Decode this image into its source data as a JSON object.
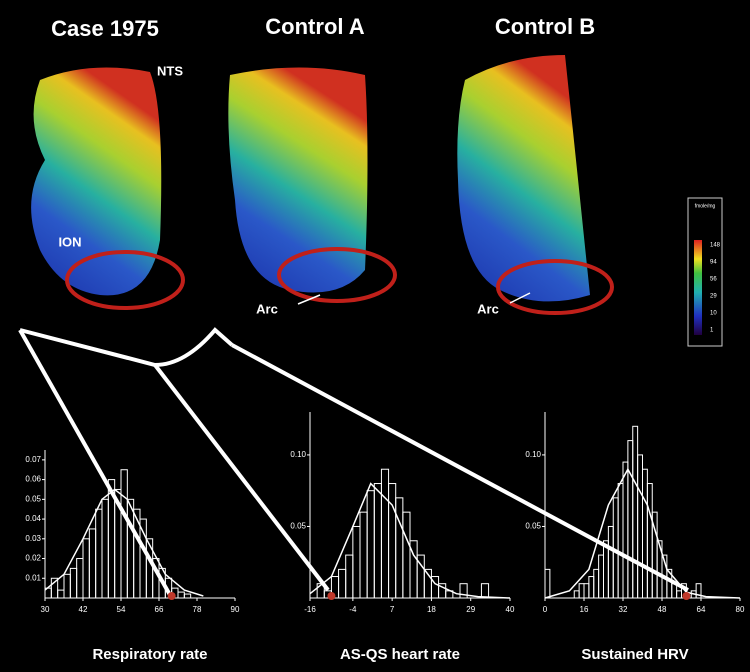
{
  "images": [
    {
      "title": "Case 1975",
      "labels": [
        "NTS",
        "ION"
      ]
    },
    {
      "title": "Control A",
      "labels": [
        "Arc"
      ]
    },
    {
      "title": "Control B",
      "labels": [
        "Arc"
      ]
    }
  ],
  "colorbar": {
    "title": "fmole/mg",
    "labels": [
      "148",
      "94",
      "56",
      "29",
      "10",
      "1"
    ]
  },
  "chart_data": [
    {
      "type": "histogram",
      "xlabel": "Respiratory rate",
      "bins": [
        30,
        32,
        34,
        36,
        38,
        40,
        42,
        44,
        46,
        48,
        50,
        52,
        54,
        56,
        58,
        60,
        62,
        64,
        66,
        68,
        70,
        72,
        74,
        76
      ],
      "values": [
        0.005,
        0.01,
        0.004,
        0.012,
        0.015,
        0.02,
        0.03,
        0.035,
        0.045,
        0.05,
        0.06,
        0.055,
        0.065,
        0.05,
        0.045,
        0.04,
        0.03,
        0.02,
        0.015,
        0.01,
        0.005,
        0.003,
        0.002
      ],
      "fit": {
        "x": [
          30,
          36,
          42,
          48,
          52,
          56,
          62,
          68,
          74,
          80
        ],
        "values": [
          0.004,
          0.012,
          0.03,
          0.05,
          0.055,
          0.05,
          0.03,
          0.012,
          0.004,
          0.001
        ]
      },
      "case_value": 70,
      "color": "#ffffff",
      "case_color": "#c0392b",
      "xlim": [
        30,
        90
      ],
      "xticks": [
        30,
        42,
        54,
        66,
        78,
        90
      ],
      "ylim": [
        0,
        0.075
      ],
      "yticks": [
        0.01,
        0.02,
        0.03,
        0.04,
        0.05,
        0.06,
        0.07
      ]
    },
    {
      "type": "histogram",
      "xlabel": "AS-QS heart rate",
      "bins": [
        -14,
        -12,
        -10,
        -8,
        -6,
        -4,
        -2,
        0,
        2,
        4,
        6,
        8,
        10,
        12,
        14,
        16,
        18,
        20,
        22,
        24,
        26,
        28,
        30,
        32,
        34
      ],
      "values": [
        0.01,
        0.005,
        0.015,
        0.02,
        0.03,
        0.05,
        0.06,
        0.075,
        0.08,
        0.09,
        0.08,
        0.07,
        0.06,
        0.04,
        0.03,
        0.02,
        0.015,
        0.01,
        0.005,
        0,
        0.01,
        0,
        0,
        0.01
      ],
      "fit": {
        "x": [
          -16,
          -10,
          -4,
          1,
          7,
          13,
          19,
          25,
          31,
          40
        ],
        "values": [
          0.003,
          0.015,
          0.05,
          0.08,
          0.065,
          0.03,
          0.01,
          0.003,
          0.001,
          0
        ]
      },
      "case_value": -10,
      "color": "#ffffff",
      "case_color": "#c0392b",
      "xlim": [
        -16,
        40
      ],
      "xticks": [
        -16,
        -4,
        7,
        18,
        29,
        40
      ],
      "ylim": [
        0,
        0.13
      ],
      "yticks": [
        0.05,
        {
          "value": 0.1,
          "label": "0.10"
        }
      ]
    },
    {
      "type": "histogram",
      "xlabel": "Sustained HRV",
      "bins": [
        0,
        2,
        4,
        6,
        8,
        10,
        12,
        14,
        16,
        18,
        20,
        22,
        24,
        26,
        28,
        30,
        32,
        34,
        36,
        38,
        40,
        42,
        44,
        46,
        48,
        50,
        52,
        54,
        56,
        58,
        60,
        62,
        64
      ],
      "values": [
        0.02,
        0,
        0,
        0,
        0,
        0,
        0.005,
        0.01,
        0.01,
        0.015,
        0.02,
        0.03,
        0.04,
        0.05,
        0.07,
        0.08,
        0.095,
        0.11,
        0.12,
        0.1,
        0.09,
        0.08,
        0.06,
        0.04,
        0.03,
        0.02,
        0.01,
        0.005,
        0.01,
        0,
        0.005,
        0.01
      ],
      "fit": {
        "x": [
          0,
          10,
          18,
          26,
          34,
          42,
          50,
          58,
          66,
          80
        ],
        "values": [
          0,
          0.005,
          0.02,
          0.065,
          0.09,
          0.065,
          0.02,
          0.004,
          0.001,
          0
        ]
      },
      "case_value": 58,
      "color": "#ffffff",
      "case_color": "#c0392b",
      "xlim": [
        0,
        80
      ],
      "xticks": [
        0,
        16,
        32,
        48,
        64,
        80
      ],
      "ylim": [
        0,
        0.13
      ],
      "yticks": [
        0.05,
        {
          "value": 0.1,
          "label": "0.10"
        }
      ]
    }
  ]
}
